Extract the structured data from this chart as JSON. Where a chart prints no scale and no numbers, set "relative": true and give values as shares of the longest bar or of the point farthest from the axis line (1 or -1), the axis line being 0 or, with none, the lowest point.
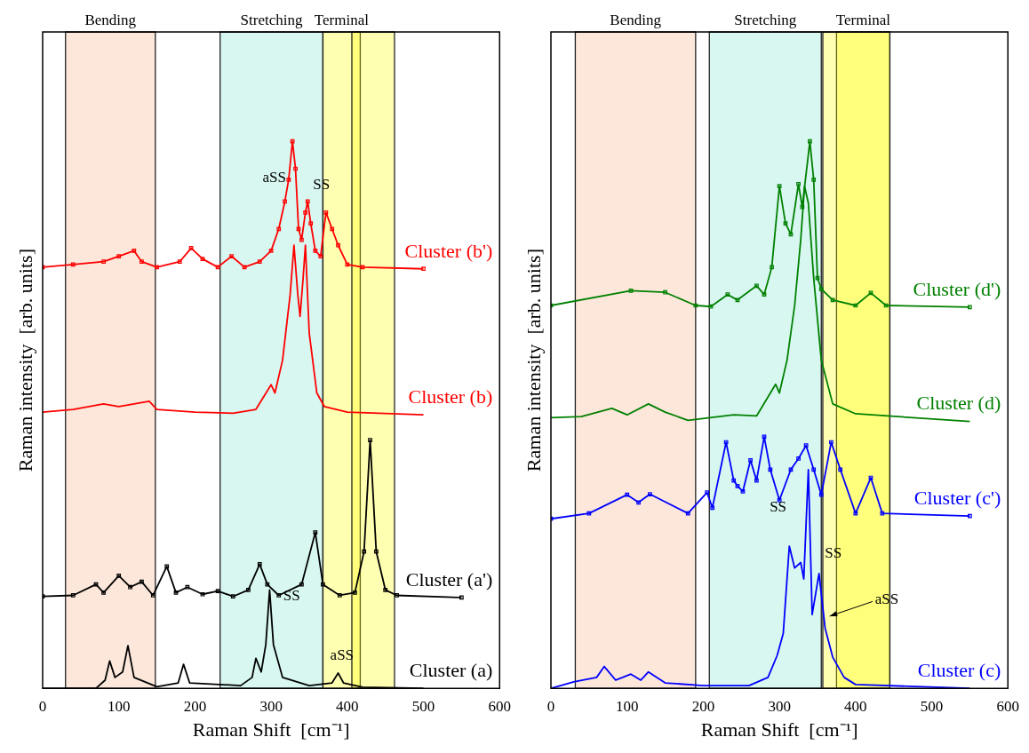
{
  "chart_data": [
    {
      "type": "line",
      "relative": true,
      "xlabel": "Raman Shift  [cm⁻¹]",
      "ylabel": "Raman intensity  [arb. units]",
      "xlim": [
        0,
        600
      ],
      "xticks": [
        0,
        100,
        200,
        300,
        400,
        500,
        600
      ],
      "grid": false,
      "legend": false,
      "bands": [
        {
          "axis": "x",
          "from": 30,
          "to": 148,
          "label": "Bending",
          "color": "#f4b183"
        },
        {
          "axis": "x",
          "from": 233,
          "to": 368,
          "label": "Stretching",
          "color": "#7fe5d0"
        },
        {
          "axis": "x",
          "from": 368,
          "to": 417,
          "label": "Terminal",
          "color": "#ffff00"
        },
        {
          "axis": "x",
          "from": 406,
          "to": 462,
          "color": "#ffff00"
        }
      ],
      "annotations": [
        "aSS",
        "SS",
        "SS",
        "aSS"
      ],
      "series": [
        {
          "name": "Cluster (b')",
          "color": "#ff0000",
          "marker": "square",
          "x": [
            0,
            40,
            80,
            100,
            120,
            130,
            150,
            180,
            195,
            210,
            230,
            248,
            265,
            285,
            300,
            310,
            318,
            323,
            328,
            332,
            336,
            340,
            345,
            348,
            352,
            358,
            365,
            372,
            380,
            388,
            400,
            420,
            500
          ],
          "values": [
            0.77,
            0.775,
            0.78,
            0.79,
            0.8,
            0.78,
            0.77,
            0.78,
            0.805,
            0.785,
            0.77,
            0.79,
            0.77,
            0.78,
            0.8,
            0.84,
            0.89,
            0.93,
            1.0,
            0.95,
            0.84,
            0.82,
            0.87,
            0.89,
            0.85,
            0.8,
            0.79,
            0.87,
            0.84,
            0.81,
            0.775,
            0.77,
            0.767
          ]
        },
        {
          "name": "Cluster (b)",
          "color": "#ff0000",
          "marker": "none",
          "x": [
            0,
            40,
            80,
            100,
            120,
            140,
            150,
            200,
            250,
            280,
            300,
            305,
            315,
            325,
            330,
            335,
            338,
            342,
            345,
            350,
            360,
            370,
            400,
            500
          ],
          "values": [
            0.505,
            0.51,
            0.52,
            0.515,
            0.52,
            0.525,
            0.51,
            0.505,
            0.503,
            0.51,
            0.555,
            0.54,
            0.6,
            0.72,
            0.81,
            0.72,
            0.68,
            0.75,
            0.81,
            0.65,
            0.54,
            0.515,
            0.505,
            0.5
          ]
        },
        {
          "name": "Cluster (a')",
          "color": "#000000",
          "marker": "square",
          "x": [
            0,
            40,
            70,
            80,
            100,
            115,
            130,
            145,
            163,
            175,
            190,
            210,
            230,
            250,
            270,
            285,
            295,
            310,
            340,
            358,
            368,
            390,
            410,
            422,
            430,
            438,
            450,
            465,
            550
          ],
          "values": [
            0.168,
            0.17,
            0.19,
            0.175,
            0.206,
            0.185,
            0.195,
            0.17,
            0.223,
            0.175,
            0.185,
            0.172,
            0.178,
            0.168,
            0.18,
            0.227,
            0.19,
            0.17,
            0.19,
            0.285,
            0.19,
            0.17,
            0.175,
            0.25,
            0.454,
            0.25,
            0.18,
            0.17,
            0.166
          ]
        },
        {
          "name": "Cluster (a)",
          "color": "#000000",
          "marker": "none",
          "x": [
            0,
            70,
            82,
            88,
            95,
            105,
            112,
            120,
            150,
            178,
            185,
            193,
            260,
            275,
            280,
            287,
            293,
            298,
            303,
            315,
            350,
            380,
            388,
            395,
            420,
            500
          ],
          "values": [
            0.0,
            0.0,
            0.015,
            0.05,
            0.02,
            0.03,
            0.078,
            0.02,
            0.003,
            0.01,
            0.044,
            0.01,
            0.005,
            0.02,
            0.055,
            0.03,
            0.08,
            0.18,
            0.08,
            0.02,
            0.005,
            0.01,
            0.028,
            0.01,
            0.002,
            0.0
          ]
        }
      ]
    },
    {
      "type": "line",
      "relative": true,
      "xlabel": "Raman Shift  [cm⁻¹]",
      "ylabel": "Raman intensity  [arb. units]",
      "xlim": [
        0,
        600
      ],
      "xticks": [
        0,
        100,
        200,
        300,
        400,
        500,
        600
      ],
      "grid": false,
      "legend": false,
      "bands": [
        {
          "axis": "x",
          "from": 32,
          "to": 190,
          "label": "Bending",
          "color": "#f4b183"
        },
        {
          "axis": "x",
          "from": 208,
          "to": 355,
          "label": "Stretching",
          "color": "#7fe5d0"
        },
        {
          "axis": "x",
          "from": 375,
          "to": 445,
          "label": "Terminal",
          "color": "#ffff00"
        },
        {
          "axis": "x",
          "from": 357,
          "to": 445,
          "color": "#ffff00"
        }
      ],
      "annotations": [
        "SS",
        "SS",
        "aSS"
      ],
      "series": [
        {
          "name": "Cluster (d')",
          "color": "#008000",
          "marker": "square",
          "x": [
            0,
            105,
            150,
            190,
            210,
            232,
            245,
            270,
            280,
            290,
            300,
            308,
            315,
            325,
            330,
            340,
            345,
            350,
            355,
            370,
            400,
            420,
            440,
            550
          ],
          "values": [
            0.7,
            0.727,
            0.724,
            0.7,
            0.698,
            0.72,
            0.71,
            0.736,
            0.72,
            0.77,
            0.918,
            0.85,
            0.83,
            0.922,
            0.88,
            1.0,
            0.93,
            0.75,
            0.73,
            0.71,
            0.7,
            0.723,
            0.7,
            0.697
          ]
        },
        {
          "name": "Cluster (d)",
          "color": "#008000",
          "marker": "none",
          "x": [
            0,
            40,
            80,
            100,
            128,
            150,
            180,
            240,
            270,
            295,
            300,
            310,
            320,
            328,
            333,
            338,
            345,
            355,
            370,
            400,
            550
          ],
          "values": [
            0.495,
            0.497,
            0.512,
            0.5,
            0.52,
            0.505,
            0.49,
            0.5,
            0.498,
            0.556,
            0.54,
            0.6,
            0.7,
            0.82,
            0.918,
            0.887,
            0.75,
            0.6,
            0.52,
            0.502,
            0.488
          ]
        },
        {
          "name": "Cluster (c')",
          "color": "#0000ff",
          "marker": "square",
          "x": [
            0,
            50,
            100,
            115,
            130,
            180,
            205,
            212,
            230,
            240,
            245,
            252,
            262,
            270,
            280,
            288,
            300,
            315,
            325,
            335,
            345,
            355,
            368,
            380,
            400,
            420,
            435,
            550
          ],
          "values": [
            0.31,
            0.32,
            0.354,
            0.34,
            0.355,
            0.32,
            0.358,
            0.33,
            0.45,
            0.38,
            0.37,
            0.36,
            0.417,
            0.38,
            0.46,
            0.4,
            0.344,
            0.4,
            0.42,
            0.444,
            0.4,
            0.354,
            0.45,
            0.4,
            0.32,
            0.385,
            0.32,
            0.315
          ]
        },
        {
          "name": "Cluster (c)",
          "color": "#0000ff",
          "marker": "none",
          "x": [
            0,
            30,
            60,
            70,
            85,
            105,
            118,
            128,
            150,
            200,
            260,
            285,
            297,
            305,
            313,
            320,
            328,
            332,
            338,
            343,
            352,
            360,
            370,
            385,
            400,
            550
          ],
          "values": [
            0.0,
            0.012,
            0.02,
            0.04,
            0.015,
            0.026,
            0.015,
            0.03,
            0.01,
            0.005,
            0.005,
            0.02,
            0.06,
            0.1,
            0.26,
            0.22,
            0.23,
            0.2,
            0.4,
            0.135,
            0.21,
            0.11,
            0.057,
            0.02,
            0.007,
            0.0
          ]
        }
      ]
    }
  ]
}
